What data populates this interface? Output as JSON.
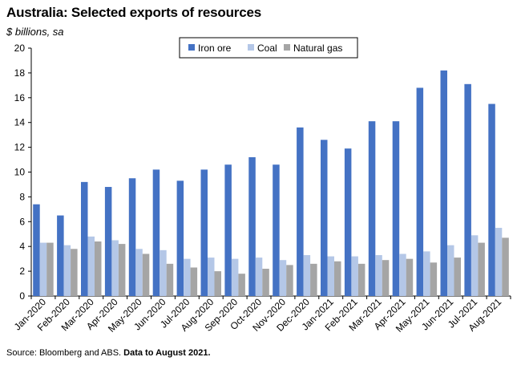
{
  "header": {
    "title": "Australia: Selected exports of resources",
    "subtitle": "$ billions, sa"
  },
  "footer": {
    "source_text": "Source: Bloomberg and ABS.",
    "source_bold": "Data to August 2021."
  },
  "colors": {
    "Iron ore": "#4472C4",
    "Coal": "#B4C7E7",
    "Natural gas": "#A5A5A5"
  },
  "chart_data": {
    "type": "bar",
    "categories": [
      "Jan-2020",
      "Feb-2020",
      "Mar-2020",
      "Apr-2020",
      "May-2020",
      "Jun-2020",
      "Jul-2020",
      "Aug-2020",
      "Sep-2020",
      "Oct-2020",
      "Nov-2020",
      "Dec-2020",
      "Jan-2021",
      "Feb-2021",
      "Mar-2021",
      "Apr-2021",
      "May-2021",
      "Jun-2021",
      "Jul-2021",
      "Aug-2021"
    ],
    "series": [
      {
        "name": "Iron ore",
        "values": [
          7.4,
          6.5,
          9.2,
          8.8,
          9.5,
          10.2,
          9.3,
          10.2,
          10.6,
          11.2,
          10.6,
          13.6,
          12.6,
          11.9,
          14.1,
          14.1,
          16.8,
          18.2,
          17.1,
          15.5
        ]
      },
      {
        "name": "Coal",
        "values": [
          4.3,
          4.1,
          4.8,
          4.5,
          3.8,
          3.7,
          3.0,
          3.1,
          3.0,
          3.1,
          2.9,
          3.3,
          3.2,
          3.2,
          3.3,
          3.4,
          3.6,
          4.1,
          4.9,
          5.5
        ]
      },
      {
        "name": "Natural gas",
        "values": [
          4.3,
          3.8,
          4.4,
          4.2,
          3.4,
          2.6,
          2.3,
          2.0,
          1.8,
          2.2,
          2.5,
          2.6,
          2.8,
          2.6,
          2.9,
          3.0,
          2.7,
          3.1,
          4.3,
          4.7
        ]
      }
    ],
    "ylim": [
      0,
      20
    ],
    "yticks": [
      0,
      2,
      4,
      6,
      8,
      10,
      12,
      14,
      16,
      18,
      20
    ],
    "legend_position": "top-center",
    "grid": false
  }
}
